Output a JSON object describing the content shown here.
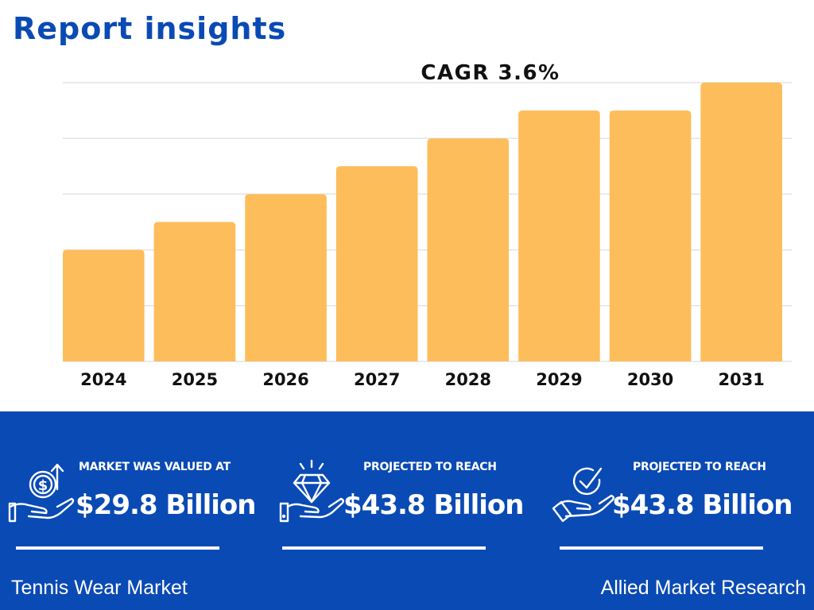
{
  "header": {
    "title": "Report insights"
  },
  "colors": {
    "brand_blue": "#0a4ab4",
    "bar_fill": "#fdbd5b",
    "grid": "#e3e3e3",
    "text_dark": "#111111"
  },
  "chart_data": {
    "type": "bar",
    "annotation": "CAGR 3.6%",
    "categories": [
      "2024",
      "2025",
      "2026",
      "2027",
      "2028",
      "2029",
      "2030",
      "2031"
    ],
    "values": [
      2,
      2.5,
      3,
      3.5,
      4,
      4.5,
      4.5,
      5
    ],
    "ylim": [
      0,
      5
    ],
    "grid": true,
    "xlabel": "",
    "ylabel": "",
    "title": ""
  },
  "stats": [
    {
      "icon": "dollar-coin-hand-icon",
      "label": "MARKET WAS VALUED AT",
      "value": "$29.8 Billion"
    },
    {
      "icon": "diamond-hand-icon",
      "label": "PROJECTED TO REACH",
      "value": "$43.8 Billion"
    },
    {
      "icon": "checkmark-hand-icon",
      "label": "PROJECTED TO REACH",
      "value": "$43.8 Billion"
    }
  ],
  "footer": {
    "market_name": "Tennis Wear Market",
    "publisher": "Allied Market Research"
  }
}
